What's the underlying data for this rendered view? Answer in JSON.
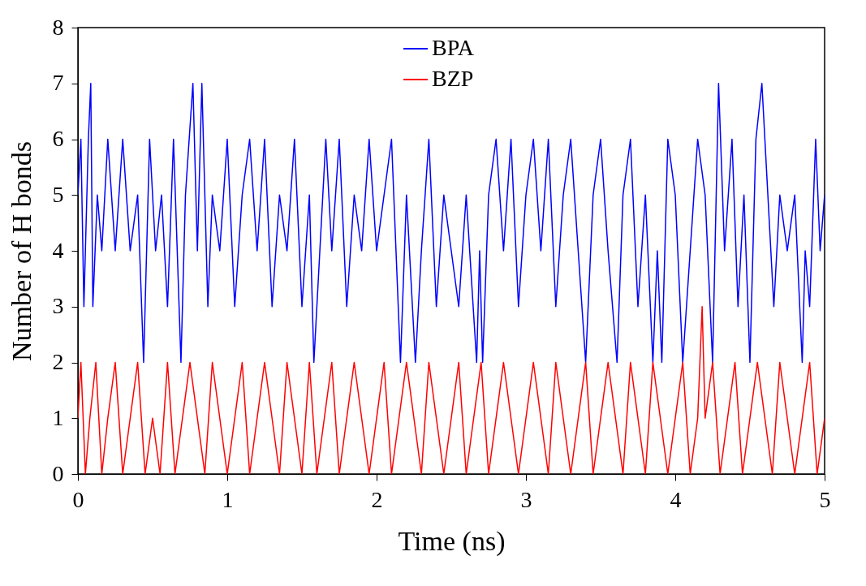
{
  "chart_data": {
    "type": "line",
    "xlabel": "Time (ns)",
    "ylabel": "Number of H bonds",
    "xlim": [
      0,
      5
    ],
    "ylim": [
      0,
      8
    ],
    "xticks": [
      0,
      1,
      2,
      3,
      4,
      5
    ],
    "yticks": [
      0,
      1,
      2,
      3,
      4,
      5,
      6,
      7,
      8
    ],
    "grid": false,
    "legend": "top",
    "line_style": "solid",
    "marker": "none",
    "series": [
      {
        "name": "BPA",
        "color": "#0000ff",
        "x": [
          0,
          0.02,
          0.04,
          0.07,
          0.086,
          0.1,
          0.13,
          0.16,
          0.2,
          0.25,
          0.3,
          0.35,
          0.4,
          0.44,
          0.48,
          0.52,
          0.56,
          0.6,
          0.64,
          0.69,
          0.72,
          0.77,
          0.8,
          0.83,
          0.87,
          0.9,
          0.95,
          1.0,
          1.05,
          1.1,
          1.15,
          1.2,
          1.25,
          1.3,
          1.35,
          1.4,
          1.45,
          1.5,
          1.55,
          1.58,
          1.62,
          1.66,
          1.7,
          1.75,
          1.8,
          1.85,
          1.9,
          1.95,
          2.0,
          2.05,
          2.1,
          2.16,
          2.2,
          2.26,
          2.3,
          2.35,
          2.4,
          2.45,
          2.5,
          2.55,
          2.6,
          2.67,
          2.69,
          2.71,
          2.75,
          2.8,
          2.85,
          2.9,
          2.95,
          3.0,
          3.05,
          3.1,
          3.15,
          3.2,
          3.25,
          3.3,
          3.35,
          3.4,
          3.45,
          3.5,
          3.55,
          3.61,
          3.65,
          3.7,
          3.75,
          3.8,
          3.85,
          3.88,
          3.91,
          3.95,
          4.0,
          4.05,
          4.1,
          4.15,
          4.2,
          4.25,
          4.29,
          4.33,
          4.38,
          4.42,
          4.46,
          4.5,
          4.54,
          4.58,
          4.62,
          4.66,
          4.7,
          4.75,
          4.8,
          4.85,
          4.87,
          4.9,
          4.94,
          4.97,
          5.0
        ],
        "values": [
          5,
          6,
          3,
          6,
          7,
          3,
          5,
          4,
          6,
          4,
          6,
          4,
          5,
          2,
          6,
          4,
          5,
          3,
          6,
          2,
          5,
          7,
          4,
          7,
          3,
          5,
          4,
          6,
          3,
          5,
          6,
          4,
          6,
          3,
          5,
          4,
          6,
          3,
          5,
          2,
          4,
          6,
          4,
          6,
          3,
          5,
          4,
          6,
          4,
          5,
          6,
          2,
          5,
          2,
          4,
          6,
          3,
          5,
          4,
          3,
          5,
          2,
          4,
          2,
          5,
          6,
          4,
          6,
          3,
          5,
          6,
          4,
          6,
          3,
          5,
          6,
          4,
          2,
          5,
          6,
          4,
          2,
          5,
          6,
          3,
          5,
          2,
          4,
          2,
          6,
          5,
          2,
          4,
          6,
          5,
          2,
          7,
          4,
          6,
          3,
          5,
          2,
          6,
          7,
          5,
          3,
          5,
          4,
          5,
          2,
          4,
          3,
          6,
          4,
          5
        ]
      },
      {
        "name": "BZP",
        "color": "#ff0000",
        "x": [
          0,
          0.02,
          0.05,
          0.08,
          0.12,
          0.16,
          0.2,
          0.25,
          0.3,
          0.35,
          0.4,
          0.45,
          0.5,
          0.55,
          0.6,
          0.65,
          0.7,
          0.75,
          0.8,
          0.85,
          0.9,
          0.95,
          1.0,
          1.05,
          1.1,
          1.15,
          1.2,
          1.25,
          1.3,
          1.35,
          1.4,
          1.45,
          1.5,
          1.55,
          1.6,
          1.65,
          1.7,
          1.75,
          1.8,
          1.85,
          1.9,
          1.95,
          2.0,
          2.05,
          2.1,
          2.15,
          2.2,
          2.25,
          2.3,
          2.35,
          2.4,
          2.45,
          2.5,
          2.55,
          2.6,
          2.65,
          2.7,
          2.75,
          2.8,
          2.85,
          2.9,
          2.95,
          3.0,
          3.05,
          3.1,
          3.15,
          3.2,
          3.25,
          3.3,
          3.35,
          3.4,
          3.45,
          3.5,
          3.55,
          3.6,
          3.65,
          3.7,
          3.75,
          3.8,
          3.85,
          3.9,
          3.95,
          4.0,
          4.05,
          4.1,
          4.15,
          4.18,
          4.2,
          4.25,
          4.3,
          4.35,
          4.4,
          4.45,
          4.5,
          4.55,
          4.6,
          4.65,
          4.7,
          4.75,
          4.8,
          4.85,
          4.9,
          4.95,
          5.0
        ],
        "values": [
          1,
          2,
          0,
          1,
          2,
          0,
          1,
          2,
          0,
          1,
          2,
          0,
          1,
          0,
          2,
          0,
          1,
          2,
          1,
          0,
          2,
          1,
          0,
          1,
          2,
          0,
          1,
          2,
          1,
          0,
          2,
          1,
          0,
          2,
          0,
          1,
          2,
          0,
          1,
          2,
          1,
          0,
          1,
          2,
          0,
          1,
          2,
          1,
          0,
          2,
          1,
          0,
          1,
          2,
          0,
          1,
          2,
          0,
          1,
          2,
          1,
          0,
          1,
          2,
          1,
          0,
          2,
          1,
          0,
          1,
          2,
          0,
          1,
          2,
          1,
          0,
          2,
          1,
          0,
          2,
          1,
          0,
          1,
          2,
          0,
          1,
          3,
          1,
          2,
          0,
          1,
          2,
          0,
          1,
          2,
          1,
          0,
          2,
          1,
          0,
          1,
          2,
          0,
          1
        ]
      }
    ]
  }
}
